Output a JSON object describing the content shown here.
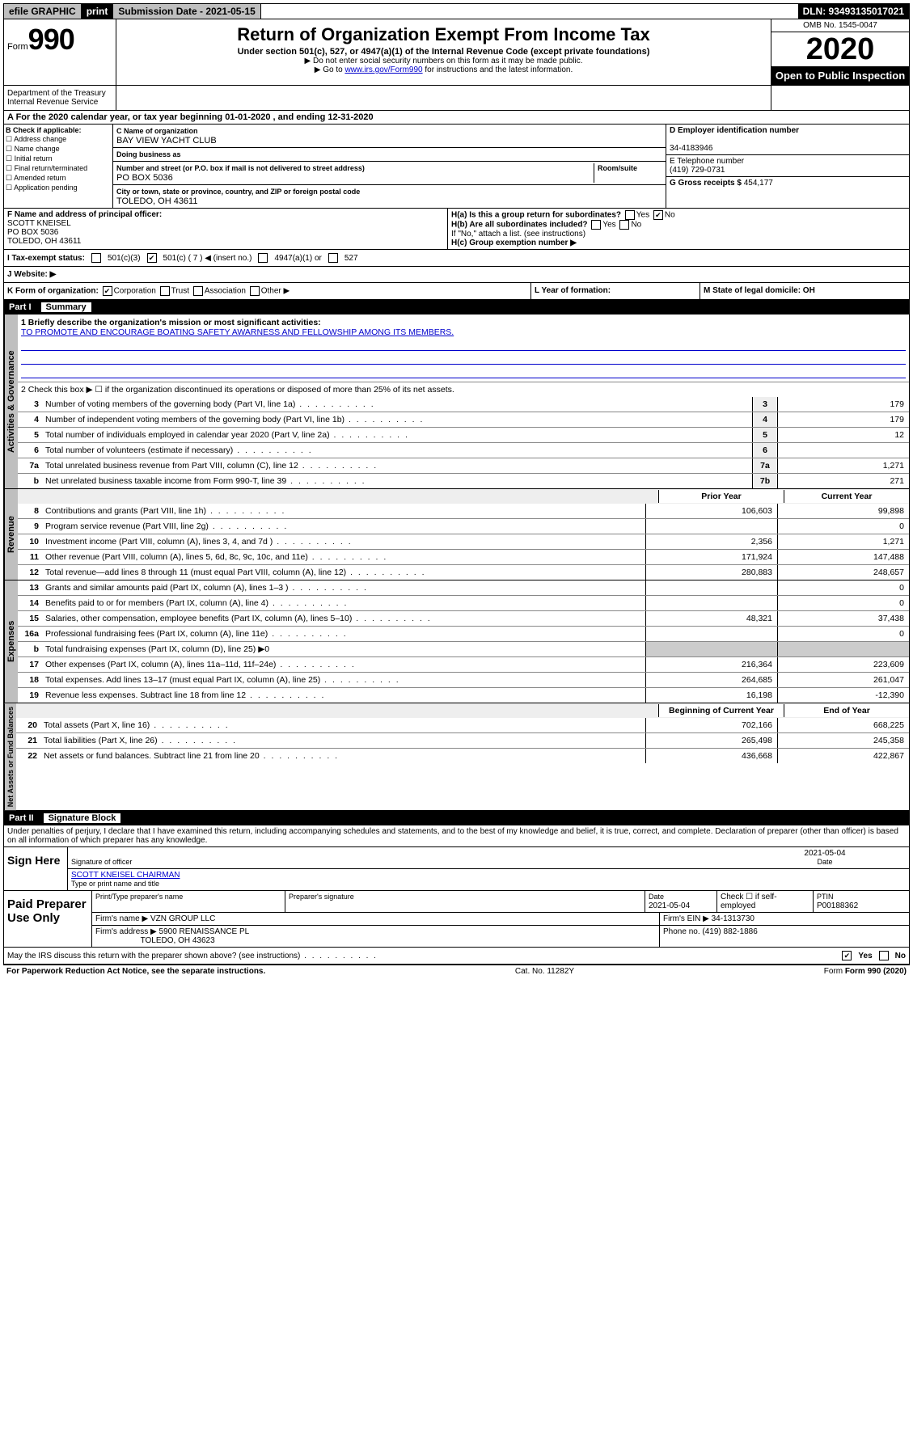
{
  "topbar": {
    "efile": "efile GRAPHIC",
    "print": "print",
    "subdate_lbl": "Submission Date - 2021-05-15",
    "dln": "DLN: 93493135017021"
  },
  "header": {
    "form_word": "Form",
    "form_num": "990",
    "title": "Return of Organization Exempt From Income Tax",
    "sub1": "Under section 501(c), 527, or 4947(a)(1) of the Internal Revenue Code (except private foundations)",
    "sub2": "▶ Do not enter social security numbers on this form as it may be made public.",
    "sub3_pre": "▶ Go to ",
    "sub3_link": "www.irs.gov/Form990",
    "sub3_post": " for instructions and the latest information.",
    "omb": "OMB No. 1545-0047",
    "year": "2020",
    "inspect": "Open to Public Inspection",
    "dept": "Department of the Treasury Internal Revenue Service"
  },
  "row_a": "A For the 2020 calendar year, or tax year beginning 01-01-2020    , and ending 12-31-2020",
  "box_b": {
    "lbl": "B Check if applicable:",
    "items": [
      "Address change",
      "Name change",
      "Initial return",
      "Final return/terminated",
      "Amended return",
      "Application pending"
    ]
  },
  "box_c": {
    "name_lbl": "C Name of organization",
    "name": "BAY VIEW YACHT CLUB",
    "dba_lbl": "Doing business as",
    "addr_lbl": "Number and street (or P.O. box if mail is not delivered to street address)",
    "room_lbl": "Room/suite",
    "addr": "PO BOX 5036",
    "city_lbl": "City or town, state or province, country, and ZIP or foreign postal code",
    "city": "TOLEDO, OH  43611"
  },
  "box_d": {
    "lbl": "D Employer identification number",
    "val": "34-4183946"
  },
  "box_e": {
    "lbl": "E Telephone number",
    "val": "(419) 729-0731"
  },
  "box_g": {
    "lbl": "G Gross receipts $ ",
    "val": "454,177"
  },
  "box_f": {
    "lbl": "F  Name and address of principal officer:",
    "name": "SCOTT KNEISEL",
    "addr1": "PO BOX 5036",
    "addr2": "TOLEDO, OH  43611"
  },
  "box_h": {
    "a": "H(a)  Is this a group return for subordinates?",
    "a_yes": "Yes",
    "a_no": "No",
    "b": "H(b)  Are all subordinates included?",
    "b_note": "If \"No,\" attach a list. (see instructions)",
    "c": "H(c)  Group exemption number ▶"
  },
  "box_i": {
    "lbl": "I   Tax-exempt status:",
    "o1": "501(c)(3)",
    "o2": "501(c) ( 7 ) ◀ (insert no.)",
    "o3": "4947(a)(1) or",
    "o4": "527"
  },
  "box_j": "J   Website: ▶",
  "box_k": {
    "lbl": "K Form of organization:",
    "corp": "Corporation",
    "trust": "Trust",
    "assoc": "Association",
    "other": "Other ▶"
  },
  "box_l": "L Year of formation:",
  "box_m": "M State of legal domicile: OH",
  "part1": {
    "hdr": "Part I",
    "title": "Summary",
    "l1_lbl": "1  Briefly describe the organization's mission or most significant activities:",
    "l1_val": "TO PROMOTE AND ENCOURAGE BOATING SAFETY AWARNESS AND FELLOWSHIP AMONG ITS MEMBERS.",
    "l2": "2   Check this box ▶ ☐  if the organization discontinued its operations or disposed of more than 25% of its net assets.",
    "rows_a": [
      {
        "n": "3",
        "t": "Number of voting members of the governing body (Part VI, line 1a)",
        "c": "3",
        "v": "179"
      },
      {
        "n": "4",
        "t": "Number of independent voting members of the governing body (Part VI, line 1b)",
        "c": "4",
        "v": "179"
      },
      {
        "n": "5",
        "t": "Total number of individuals employed in calendar year 2020 (Part V, line 2a)",
        "c": "5",
        "v": "12"
      },
      {
        "n": "6",
        "t": "Total number of volunteers (estimate if necessary)",
        "c": "6",
        "v": ""
      },
      {
        "n": "7a",
        "t": "Total unrelated business revenue from Part VIII, column (C), line 12",
        "c": "7a",
        "v": "1,271"
      },
      {
        "n": "b",
        "t": "Net unrelated business taxable income from Form 990-T, line 39",
        "c": "7b",
        "v": "271"
      }
    ],
    "prior": "Prior Year",
    "current": "Current Year",
    "rows_r": [
      {
        "n": "8",
        "t": "Contributions and grants (Part VIII, line 1h)",
        "p": "106,603",
        "c": "99,898"
      },
      {
        "n": "9",
        "t": "Program service revenue (Part VIII, line 2g)",
        "p": "",
        "c": "0"
      },
      {
        "n": "10",
        "t": "Investment income (Part VIII, column (A), lines 3, 4, and 7d )",
        "p": "2,356",
        "c": "1,271"
      },
      {
        "n": "11",
        "t": "Other revenue (Part VIII, column (A), lines 5, 6d, 8c, 9c, 10c, and 11e)",
        "p": "171,924",
        "c": "147,488"
      },
      {
        "n": "12",
        "t": "Total revenue—add lines 8 through 11 (must equal Part VIII, column (A), line 12)",
        "p": "280,883",
        "c": "248,657"
      }
    ],
    "rows_e": [
      {
        "n": "13",
        "t": "Grants and similar amounts paid (Part IX, column (A), lines 1–3 )",
        "p": "",
        "c": "0"
      },
      {
        "n": "14",
        "t": "Benefits paid to or for members (Part IX, column (A), line 4)",
        "p": "",
        "c": "0"
      },
      {
        "n": "15",
        "t": "Salaries, other compensation, employee benefits (Part IX, column (A), lines 5–10)",
        "p": "48,321",
        "c": "37,438"
      },
      {
        "n": "16a",
        "t": "Professional fundraising fees (Part IX, column (A), line 11e)",
        "p": "",
        "c": "0"
      },
      {
        "n": "b",
        "t": "Total fundraising expenses (Part IX, column (D), line 25) ▶0",
        "p": null,
        "c": null
      },
      {
        "n": "17",
        "t": "Other expenses (Part IX, column (A), lines 11a–11d, 11f–24e)",
        "p": "216,364",
        "c": "223,609"
      },
      {
        "n": "18",
        "t": "Total expenses. Add lines 13–17 (must equal Part IX, column (A), line 25)",
        "p": "264,685",
        "c": "261,047"
      },
      {
        "n": "19",
        "t": "Revenue less expenses. Subtract line 18 from line 12",
        "p": "16,198",
        "c": "-12,390"
      }
    ],
    "beg": "Beginning of Current Year",
    "end": "End of Year",
    "rows_n": [
      {
        "n": "20",
        "t": "Total assets (Part X, line 16)",
        "p": "702,166",
        "c": "668,225"
      },
      {
        "n": "21",
        "t": "Total liabilities (Part X, line 26)",
        "p": "265,498",
        "c": "245,358"
      },
      {
        "n": "22",
        "t": "Net assets or fund balances. Subtract line 21 from line 20",
        "p": "436,668",
        "c": "422,867"
      }
    ],
    "vlabels": {
      "ag": "Activities & Governance",
      "r": "Revenue",
      "e": "Expenses",
      "n": "Net Assets or Fund Balances"
    }
  },
  "part2": {
    "hdr": "Part II",
    "title": "Signature Block",
    "penalties": "Under penalties of perjury, I declare that I have examined this return, including accompanying schedules and statements, and to the best of my knowledge and belief, it is true, correct, and complete. Declaration of preparer (other than officer) is based on all information of which preparer has any knowledge.",
    "sign": "Sign Here",
    "sig_lbl": "Signature of officer",
    "date": "2021-05-04",
    "date_lbl": "Date",
    "name": "SCOTT KNEISEL CHAIRMAN",
    "name_lbl": "Type or print name and title",
    "paid": "Paid Preparer Use Only",
    "prep_name_lbl": "Print/Type preparer's name",
    "prep_sig_lbl": "Preparer's signature",
    "prep_date_lbl": "Date",
    "prep_date": "2021-05-04",
    "check_lbl": "Check ☐ if self-employed",
    "ptin_lbl": "PTIN",
    "ptin": "P00188362",
    "firm_name_lbl": "Firm's name     ▶",
    "firm_name": "VZN GROUP LLC",
    "firm_ein_lbl": "Firm's EIN ▶",
    "firm_ein": "34-1313730",
    "firm_addr_lbl": "Firm's address ▶",
    "firm_addr1": "5900 RENAISSANCE PL",
    "firm_addr2": "TOLEDO, OH  43623",
    "phone_lbl": "Phone no.",
    "phone": "(419) 882-1886",
    "discuss": "May the IRS discuss this return with the preparer shown above? (see instructions)",
    "yes": "Yes",
    "no": "No"
  },
  "footer": {
    "pra": "For Paperwork Reduction Act Notice, see the separate instructions.",
    "cat": "Cat. No. 11282Y",
    "form": "Form 990 (2020)"
  }
}
